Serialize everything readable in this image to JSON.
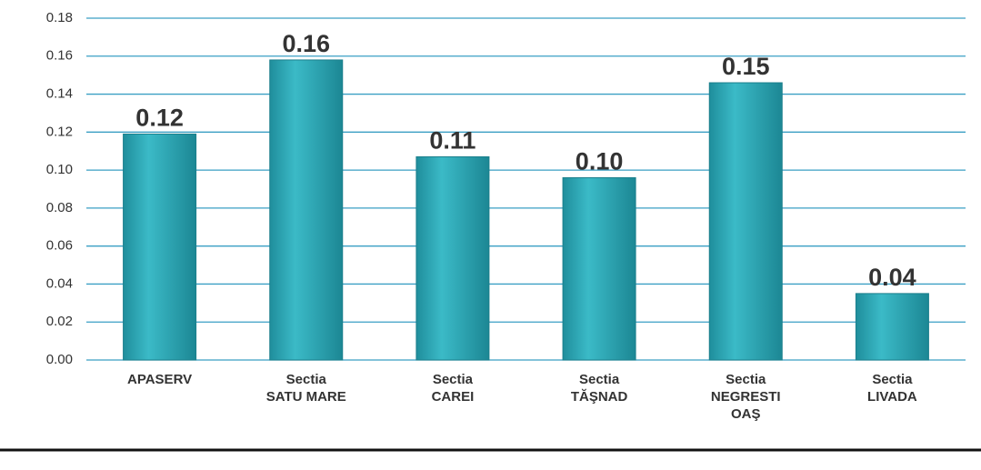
{
  "chart_data": {
    "type": "bar",
    "categories": [
      [
        "APASERV"
      ],
      [
        "Sectia",
        "SATU MARE"
      ],
      [
        "Sectia",
        "CAREI"
      ],
      [
        "Sectia",
        "TĂŞNAD"
      ],
      [
        "Sectia",
        "NEGRESTI",
        "OAŞ"
      ],
      [
        "Sectia",
        "LIVADA"
      ]
    ],
    "values": [
      0.119,
      0.158,
      0.107,
      0.096,
      0.146,
      0.035
    ],
    "value_labels": [
      "0.12",
      "0.16",
      "0.11",
      "0.10",
      "0.15",
      "0.04"
    ],
    "color": "#2aa7b4",
    "ylim": [
      0,
      0.18
    ],
    "yticks": [
      {
        "value": 0,
        "label": "0.00"
      },
      {
        "value": 0.02,
        "label": "0.02"
      },
      {
        "value": 0.04,
        "label": "0.04"
      },
      {
        "value": 0.06,
        "label": "0.06"
      },
      {
        "value": 0.08,
        "label": "0.08"
      },
      {
        "value": 0.1,
        "label": "0.10"
      },
      {
        "value": 0.12,
        "label": "0.12"
      },
      {
        "value": 0.14,
        "label": "0.14"
      },
      {
        "value": 0.16,
        "label": "0.16"
      },
      {
        "value": 0.18,
        "label": "0.18"
      }
    ],
    "grid": true,
    "grid_color": "#3a9fc4"
  }
}
